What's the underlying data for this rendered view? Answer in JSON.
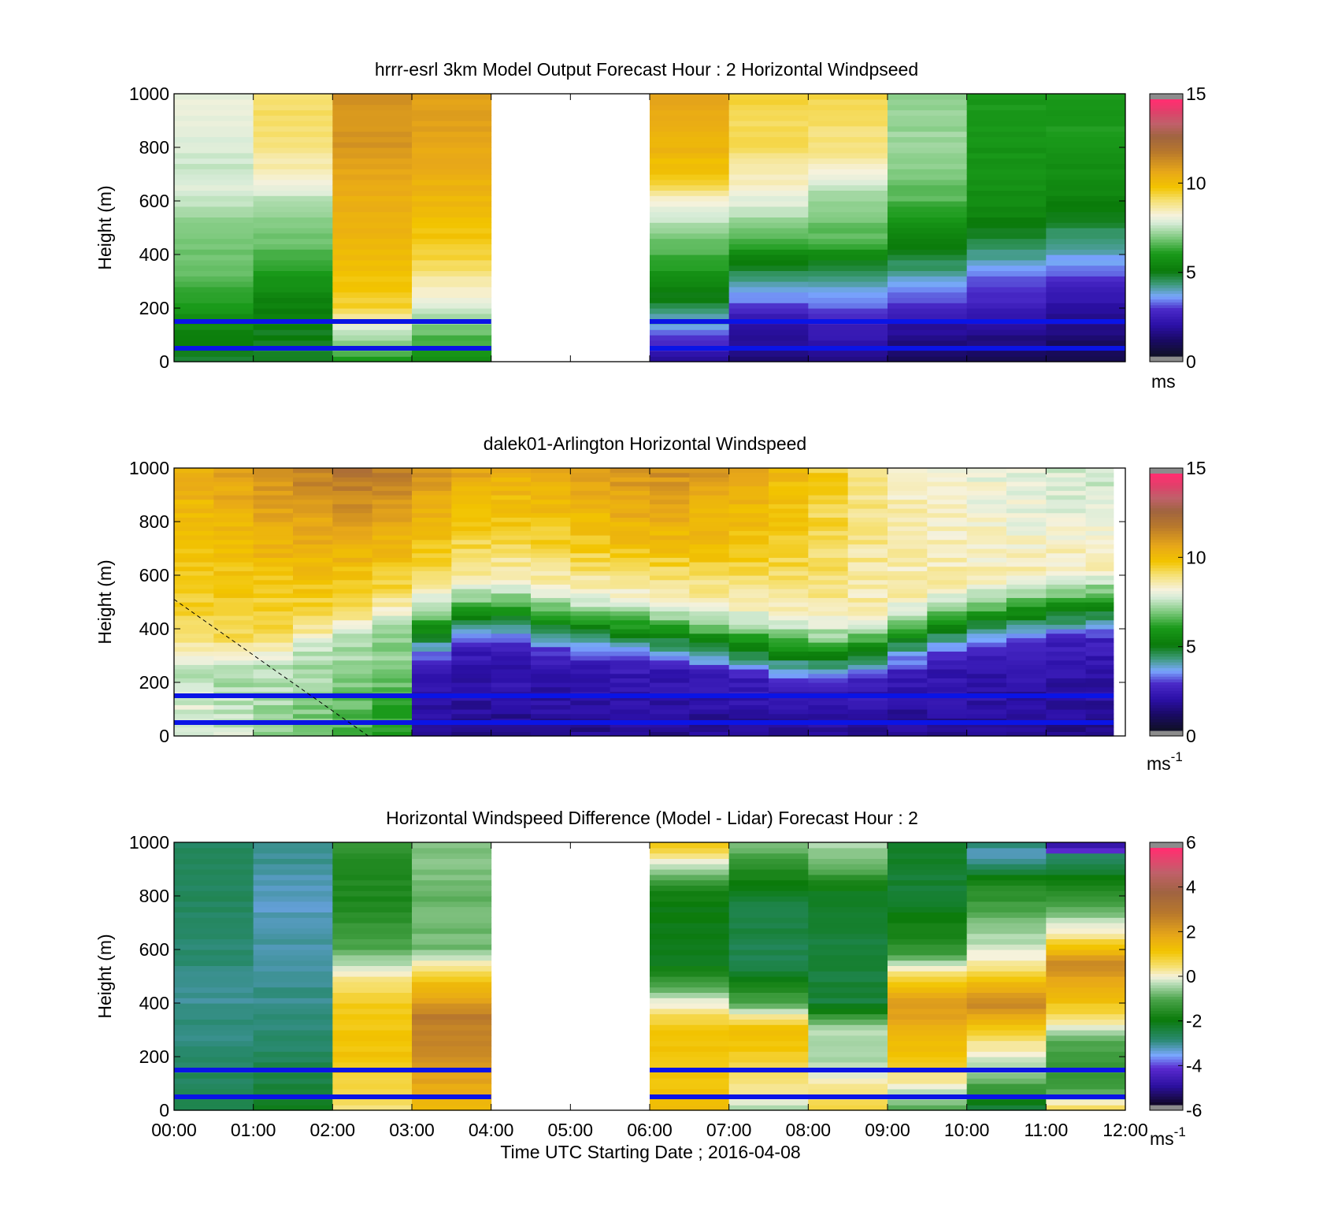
{
  "chart_data": [
    {
      "type": "heatmap",
      "title": "hrrr-esrl 3km Model Output   Forecast Hour : 2 Horizontal Windpseed",
      "ylabel": "Height (m)",
      "xlabel": "",
      "ylim": [
        0,
        1000
      ],
      "y_ticks": [
        "0",
        "200",
        "400",
        "600",
        "800",
        "1000"
      ],
      "x_ticks": [],
      "x_range_hours": [
        0,
        12
      ],
      "colorbar": {
        "min": 0,
        "max": 15,
        "ticks": [
          "0",
          "5",
          "10",
          "15"
        ],
        "unit": "ms",
        "palette": "speed"
      },
      "reference_lines_m": [
        50,
        150
      ],
      "reference_line_color": "#0a14e6",
      "no_data_hours": [
        4,
        6
      ],
      "columns": [
        {
          "t": 0,
          "profile": [
            [
              0,
              4.8
            ],
            [
              150,
              5.5
            ],
            [
              300,
              6.5
            ],
            [
              560,
              7.2
            ],
            [
              640,
              7.9
            ],
            [
              720,
              7.6
            ],
            [
              860,
              8.0
            ],
            [
              1000,
              8.1
            ]
          ]
        },
        {
          "t": 1,
          "profile": [
            [
              0,
              4.6
            ],
            [
              200,
              5.1
            ],
            [
              400,
              6.5
            ],
            [
              600,
              7.4
            ],
            [
              700,
              8.5
            ],
            [
              850,
              9.2
            ],
            [
              1000,
              9.3
            ]
          ]
        },
        {
          "t": 2,
          "profile": [
            [
              0,
              6.0
            ],
            [
              100,
              7.5
            ],
            [
              200,
              9.5
            ],
            [
              400,
              10.2
            ],
            [
              600,
              10.6
            ],
            [
              800,
              11.2
            ],
            [
              1000,
              11.3
            ]
          ]
        },
        {
          "t": 3,
          "profile": [
            [
              0,
              5.5
            ],
            [
              150,
              7.2
            ],
            [
              250,
              8.2
            ],
            [
              400,
              9.6
            ],
            [
              600,
              10.3
            ],
            [
              800,
              10.8
            ],
            [
              1000,
              11.1
            ]
          ]
        },
        {
          "t": 6,
          "profile": [
            [
              0,
              1.5
            ],
            [
              50,
              2.3
            ],
            [
              200,
              4.5
            ],
            [
              400,
              6.4
            ],
            [
              600,
              8.2
            ],
            [
              680,
              9.8
            ],
            [
              800,
              10.4
            ],
            [
              1000,
              10.9
            ]
          ]
        },
        {
          "t": 7,
          "profile": [
            [
              0,
              1.0
            ],
            [
              150,
              2.0
            ],
            [
              250,
              3.4
            ],
            [
              350,
              4.6
            ],
            [
              450,
              6.5
            ],
            [
              600,
              8.0
            ],
            [
              800,
              9.2
            ],
            [
              1000,
              9.5
            ]
          ]
        },
        {
          "t": 8,
          "profile": [
            [
              0,
              1.2
            ],
            [
              150,
              2.4
            ],
            [
              250,
              3.5
            ],
            [
              350,
              4.5
            ],
            [
              450,
              6.5
            ],
            [
              600,
              7.2
            ],
            [
              800,
              9.0
            ],
            [
              1000,
              9.4
            ]
          ]
        },
        {
          "t": 9,
          "profile": [
            [
              0,
              0.8
            ],
            [
              150,
              1.8
            ],
            [
              250,
              3.2
            ],
            [
              400,
              4.8
            ],
            [
              600,
              6.5
            ],
            [
              800,
              7.2
            ],
            [
              1000,
              7.1
            ]
          ]
        },
        {
          "t": 10,
          "profile": [
            [
              0,
              0.6
            ],
            [
              150,
              1.8
            ],
            [
              300,
              3.0
            ],
            [
              450,
              4.6
            ],
            [
              600,
              5.6
            ],
            [
              800,
              5.8
            ],
            [
              1000,
              5.9
            ]
          ]
        },
        {
          "t": 11,
          "profile": [
            [
              0,
              0.5
            ],
            [
              150,
              1.4
            ],
            [
              300,
              2.6
            ],
            [
              450,
              4.2
            ],
            [
              600,
              5.2
            ],
            [
              800,
              5.9
            ],
            [
              1000,
              6.0
            ]
          ]
        }
      ]
    },
    {
      "type": "heatmap",
      "title": "dalek01-Arlington  Horizontal Windspeed",
      "ylabel": "Height (m)",
      "xlabel": "",
      "ylim": [
        0,
        1000
      ],
      "y_ticks": [
        "0",
        "200",
        "400",
        "600",
        "800",
        "1000"
      ],
      "x_ticks": [],
      "x_range_hours": [
        0,
        12
      ],
      "data_end_hour": 11.85,
      "colorbar": {
        "min": 0,
        "max": 15,
        "ticks": [
          "0",
          "5",
          "10",
          "15"
        ],
        "unit": "ms-1",
        "palette": "speed"
      },
      "reference_lines_m": [
        50,
        150
      ],
      "reference_line_color": "#0a14e6",
      "columns_per_hour": 2,
      "mixing_layer_top_m": [
        [
          0,
          260
        ],
        [
          1,
          230
        ],
        [
          2,
          330
        ],
        [
          3,
          430
        ],
        [
          3.5,
          500
        ],
        [
          4,
          540
        ],
        [
          5,
          480
        ],
        [
          6,
          460
        ],
        [
          7,
          420
        ],
        [
          7.5,
          400
        ],
        [
          8,
          380
        ],
        [
          8.5,
          370
        ],
        [
          9,
          420
        ],
        [
          9.5,
          460
        ],
        [
          10,
          500
        ],
        [
          11,
          540
        ],
        [
          11.85,
          560
        ]
      ],
      "top_speed": [
        [
          0,
          10.5
        ],
        [
          1,
          11.2
        ],
        [
          2,
          12.0
        ],
        [
          2.5,
          12.5
        ],
        [
          3,
          11.5
        ],
        [
          4,
          10.6
        ],
        [
          5,
          10.8
        ],
        [
          6,
          11.6
        ],
        [
          7,
          11.0
        ],
        [
          8,
          10.0
        ],
        [
          8.5,
          9.4
        ],
        [
          9,
          8.6
        ],
        [
          10,
          8.2
        ],
        [
          11,
          7.7
        ],
        [
          11.85,
          7.6
        ]
      ],
      "overlay_line": {
        "style": "dashed",
        "points_hours_m": [
          [
            0,
            510
          ],
          [
            2.45,
            0
          ]
        ]
      }
    },
    {
      "type": "heatmap",
      "title": "Horizontal Windspeed Difference (Model - Lidar) Forecast Hour : 2",
      "ylabel": "Height (m)",
      "xlabel": "Time UTC  Starting Date ; 2016-04-08",
      "ylim": [
        0,
        1000
      ],
      "y_ticks": [
        "0",
        "200",
        "400",
        "600",
        "800",
        "1000"
      ],
      "x_ticks": [
        "00:00",
        "01:00",
        "02:00",
        "03:00",
        "04:00",
        "05:00",
        "06:00",
        "07:00",
        "08:00",
        "09:00",
        "10:00",
        "11:00",
        "12:00"
      ],
      "x_range_hours": [
        0,
        12
      ],
      "colorbar": {
        "min": -6,
        "max": 6,
        "ticks": [
          "-6",
          "-4",
          "-2",
          "0",
          "2",
          "4",
          "6"
        ],
        "unit": "ms-1",
        "palette": "diff"
      },
      "reference_lines_m": [
        50,
        150
      ],
      "reference_line_color": "#0a14e6",
      "no_data_hours": [
        4,
        6
      ],
      "columns": [
        {
          "t": 0,
          "profile": [
            [
              0,
              -2.5
            ],
            [
              200,
              -3.0
            ],
            [
              400,
              -3.2
            ],
            [
              600,
              -3.0
            ],
            [
              800,
              -2.8
            ],
            [
              1000,
              -2.8
            ]
          ]
        },
        {
          "t": 1,
          "profile": [
            [
              0,
              -2.3
            ],
            [
              200,
              -2.8
            ],
            [
              400,
              -3.1
            ],
            [
              600,
              -3.3
            ],
            [
              800,
              -3.4
            ],
            [
              1000,
              -3.0
            ]
          ]
        },
        {
          "t": 2,
          "profile": [
            [
              0,
              0.5
            ],
            [
              200,
              1.2
            ],
            [
              400,
              1.0
            ],
            [
              500,
              0.2
            ],
            [
              600,
              -1.0
            ],
            [
              800,
              -1.8
            ],
            [
              1000,
              -1.5
            ]
          ]
        },
        {
          "t": 3,
          "profile": [
            [
              0,
              1.4
            ],
            [
              200,
              2.5
            ],
            [
              350,
              2.9
            ],
            [
              500,
              1.0
            ],
            [
              600,
              -0.8
            ],
            [
              800,
              -0.9
            ],
            [
              1000,
              -0.6
            ]
          ]
        },
        {
          "t": 6,
          "profile": [
            [
              0,
              1.5
            ],
            [
              100,
              1.2
            ],
            [
              300,
              1.2
            ],
            [
              400,
              0.0
            ],
            [
              550,
              -2.3
            ],
            [
              800,
              -2.0
            ],
            [
              900,
              -0.5
            ],
            [
              1000,
              1.2
            ]
          ]
        },
        {
          "t": 7,
          "profile": [
            [
              0,
              -0.5
            ],
            [
              100,
              0.5
            ],
            [
              300,
              1.4
            ],
            [
              400,
              -1.0
            ],
            [
              550,
              -2.7
            ],
            [
              800,
              -2.5
            ],
            [
              1000,
              -0.7
            ]
          ]
        },
        {
          "t": 8,
          "profile": [
            [
              0,
              0.8
            ],
            [
              200,
              -0.5
            ],
            [
              300,
              -0.3
            ],
            [
              400,
              -2.5
            ],
            [
              800,
              -2.4
            ],
            [
              900,
              -1.0
            ],
            [
              1000,
              -0.4
            ]
          ]
        },
        {
          "t": 9,
          "profile": [
            [
              0,
              -1.0
            ],
            [
              200,
              1.2
            ],
            [
              400,
              2.3
            ],
            [
              500,
              0.8
            ],
            [
              600,
              -1.5
            ],
            [
              800,
              -2.5
            ],
            [
              1000,
              -2.3
            ]
          ]
        },
        {
          "t": 10,
          "profile": [
            [
              0,
              -2.6
            ],
            [
              100,
              -1.0
            ],
            [
              250,
              0.3
            ],
            [
              400,
              2.7
            ],
            [
              550,
              0.2
            ],
            [
              700,
              -0.8
            ],
            [
              850,
              -1.8
            ],
            [
              950,
              -3.5
            ],
            [
              1000,
              -3.0
            ]
          ]
        },
        {
          "t": 11,
          "profile": [
            [
              0,
              0.8
            ],
            [
              100,
              -1.5
            ],
            [
              250,
              -1.0
            ],
            [
              400,
              1.2
            ],
            [
              550,
              2.6
            ],
            [
              650,
              0.3
            ],
            [
              850,
              -2.0
            ],
            [
              950,
              -2.8
            ],
            [
              980,
              -5.0
            ],
            [
              1000,
              -5.0
            ]
          ]
        }
      ]
    }
  ]
}
